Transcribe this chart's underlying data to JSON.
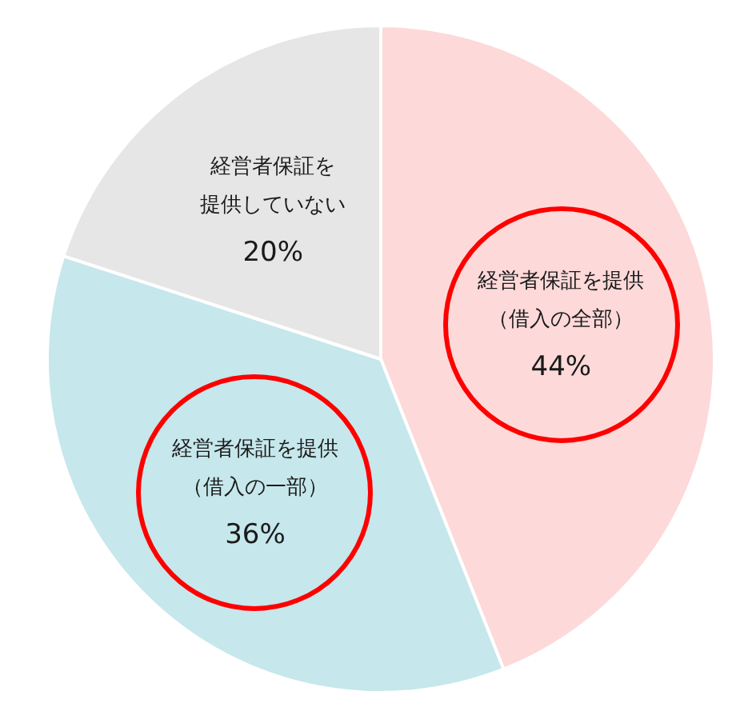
{
  "chart_data": {
    "type": "pie",
    "categories": [
      "経営者保証を提供（借入の全部）",
      "経営者保証を提供（借入の一部）",
      "経営者保証を提供していない"
    ],
    "values": [
      44,
      36,
      20
    ],
    "colors": [
      "#fdd9d9",
      "#c6e7eb",
      "#e6e6e6"
    ],
    "value_labels": [
      "44%",
      "36%",
      "20%"
    ],
    "legend": false
  }
}
